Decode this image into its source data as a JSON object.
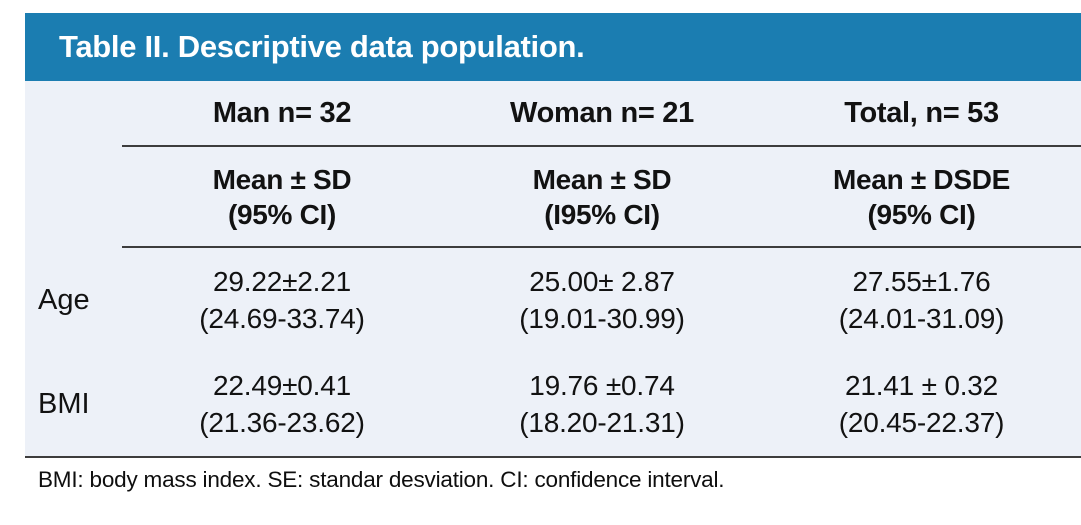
{
  "title": "Table II. Descriptive data population.",
  "table": {
    "column_headers": [
      "Man n= 32",
      "Woman n= 21",
      "Total, n= 53"
    ],
    "stat_headers": [
      {
        "line1": "Mean ± SD",
        "line2": "(95% CI)"
      },
      {
        "line1": "Mean ± SD",
        "line2": "(I95% CI)"
      },
      {
        "line1": "Mean ± DSDE",
        "line2": "(95% CI)"
      }
    ],
    "rows": [
      {
        "label": "Age",
        "cells": [
          {
            "line1": "29.22±2.21",
            "line2": "(24.69-33.74)"
          },
          {
            "line1": "25.00± 2.87",
            "line2": "(19.01-30.99)"
          },
          {
            "line1": "27.55±1.76",
            "line2": "(24.01-31.09)"
          }
        ]
      },
      {
        "label": "BMI",
        "cells": [
          {
            "line1": "22.49±0.41",
            "line2": "(21.36-23.62)"
          },
          {
            "line1": "19.76 ±0.74",
            "line2": "(18.20-21.31)"
          },
          {
            "line1": "21.41 ± 0.32",
            "line2": "(20.45-22.37)"
          }
        ]
      }
    ]
  },
  "footnote": "BMI: body mass index. SE: standar desviation. CI: confidence interval.",
  "colors": {
    "header_bg": "#1b7db1",
    "panel_bg": "#edf1f8",
    "rule": "#3d3d3d",
    "title_text": "#ffffff",
    "body_text": "#121212"
  }
}
